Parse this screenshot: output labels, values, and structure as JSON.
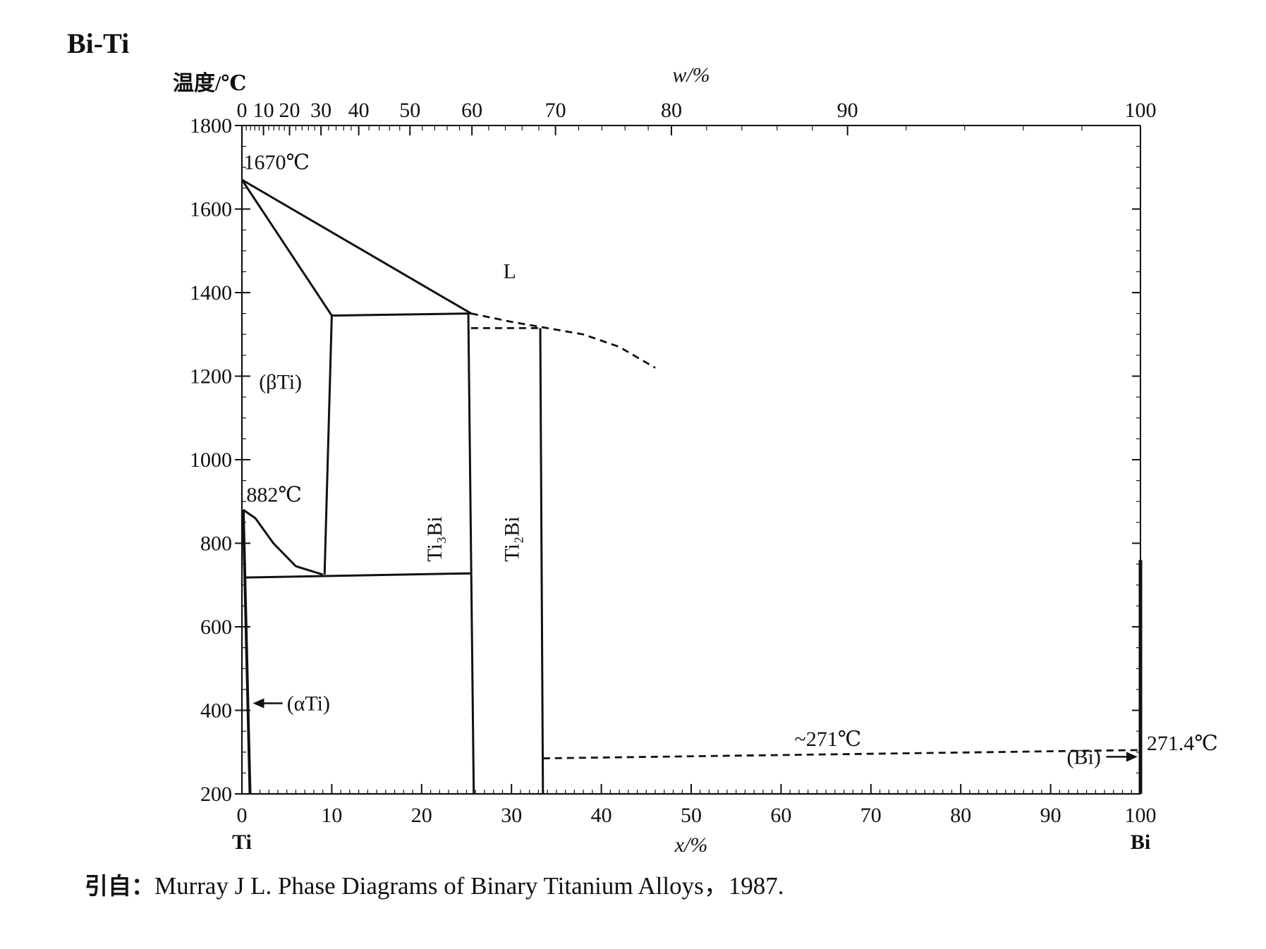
{
  "figure": {
    "title": "Bi-Ti",
    "caption_prefix": "引自：",
    "caption_text": "Murray J L.  Phase Diagrams of Binary Titanium Alloys，1987."
  },
  "chart_data": {
    "type": "line",
    "title": "Bi-Ti",
    "ylabel": "温度/℃",
    "xlabel": "x/%",
    "x2label": "w/%",
    "xlim": [
      0,
      100
    ],
    "ylim": [
      200,
      1800
    ],
    "x_ticks": [
      0,
      10,
      20,
      30,
      40,
      50,
      60,
      70,
      80,
      90,
      100
    ],
    "y_ticks": [
      200,
      400,
      600,
      800,
      1000,
      1200,
      1400,
      1600,
      1800
    ],
    "top_ticks": [
      {
        "label": "0",
        "x": 0
      },
      {
        "label": "10",
        "x": 2.4
      },
      {
        "label": "20",
        "x": 5.3
      },
      {
        "label": "30",
        "x": 8.8
      },
      {
        "label": "40",
        "x": 13.0
      },
      {
        "label": "50",
        "x": 18.7
      },
      {
        "label": "60",
        "x": 25.6
      },
      {
        "label": "70",
        "x": 34.9
      },
      {
        "label": "80",
        "x": 47.8
      },
      {
        "label": "90",
        "x": 67.4
      },
      {
        "label": "100",
        "x": 100
      }
    ],
    "element_labels": {
      "left": "Ti",
      "right": "Bi"
    },
    "solid_lines": [
      {
        "name": "liquidus-beta",
        "points": [
          [
            0,
            1670
          ],
          [
            25.5,
            1350
          ]
        ]
      },
      {
        "name": "solidus-beta",
        "points": [
          [
            0,
            1670
          ],
          [
            10,
            1345
          ]
        ]
      },
      {
        "name": "peritectic-ti3bi",
        "points": [
          [
            10,
            1345
          ],
          [
            25.5,
            1350
          ]
        ]
      },
      {
        "name": "beta-transus-right",
        "points": [
          [
            10,
            1345
          ],
          [
            9.2,
            725
          ]
        ]
      },
      {
        "name": "ti3bi-left",
        "points": [
          [
            25.2,
            1350
          ],
          [
            25.8,
            200
          ]
        ]
      },
      {
        "name": "ti2bi",
        "points": [
          [
            33.2,
            1315
          ],
          [
            33.5,
            200
          ]
        ]
      },
      {
        "name": "eutectoid",
        "points": [
          [
            0.3,
            718
          ],
          [
            25.5,
            728
          ]
        ]
      },
      {
        "name": "alpha-solvus",
        "points": [
          [
            0.15,
            880
          ],
          [
            0.9,
            200
          ]
        ]
      },
      {
        "name": "beta-transus-left",
        "points": [
          [
            0.15,
            880
          ],
          [
            1.5,
            860
          ],
          [
            3.5,
            800
          ],
          [
            6,
            745
          ],
          [
            9,
            725
          ]
        ]
      },
      {
        "name": "bi-line",
        "points": [
          [
            100,
            760
          ],
          [
            100,
            200
          ]
        ]
      }
    ],
    "dashed_lines": [
      {
        "name": "liquidus-dashed",
        "points": [
          [
            25.5,
            1350
          ],
          [
            30,
            1330
          ],
          [
            34,
            1315
          ],
          [
            38,
            1300
          ],
          [
            42,
            1270
          ],
          [
            46,
            1220
          ]
        ]
      },
      {
        "name": "ti2bi-peritectic",
        "points": [
          [
            25.5,
            1315
          ],
          [
            33.5,
            1315
          ]
        ]
      },
      {
        "name": "eutectic-dashed",
        "points": [
          [
            33.5,
            285
          ],
          [
            100,
            305
          ]
        ]
      }
    ],
    "annotations": [
      {
        "text": "1670℃",
        "x": 0.2,
        "y": 1695
      },
      {
        "text": "L",
        "x": 29.8,
        "y": 1435
      },
      {
        "text": "(βTi)",
        "x": 1.9,
        "y": 1170
      },
      {
        "text": "882℃",
        "x": 0.5,
        "y": 900
      },
      {
        "text": "(αTi)",
        "x": 5,
        "y": 400
      },
      {
        "text": "Ti₃Bi",
        "x": 22.2,
        "y": 810
      },
      {
        "text": "Ti₂Bi",
        "x": 30.8,
        "y": 810
      },
      {
        "text": "~271℃",
        "x": 61.5,
        "y": 315
      },
      {
        "text": "271.4℃",
        "x": 100.7,
        "y": 305
      },
      {
        "text": "(Bi)",
        "x": 91.8,
        "y": 272
      }
    ]
  }
}
